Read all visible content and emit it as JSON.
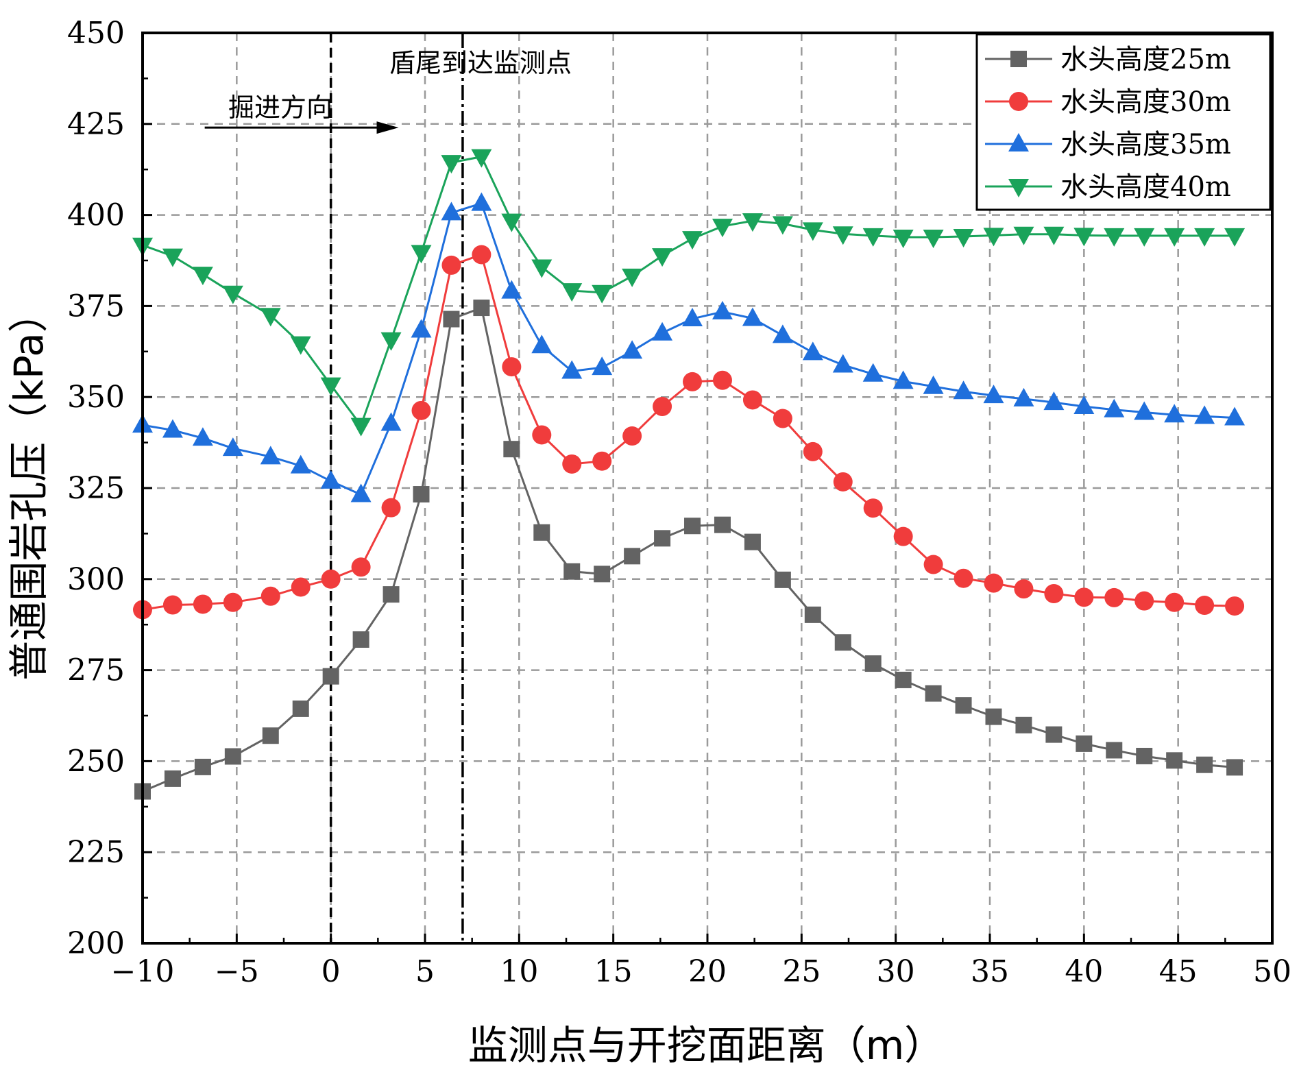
{
  "chart_data": {
    "type": "line",
    "title": "",
    "xlabel": "监测点与开挖面距离（m）",
    "ylabel": "普通围岩孔压（kPa）",
    "xlim": [
      -10,
      50
    ],
    "ylim": [
      200,
      450
    ],
    "xticks": [
      -10,
      -5,
      0,
      5,
      10,
      15,
      20,
      25,
      30,
      35,
      40,
      45,
      50
    ],
    "yticks": [
      200,
      225,
      250,
      275,
      300,
      325,
      350,
      375,
      400,
      425,
      450
    ],
    "xtick_labels": [
      "−10",
      "−5",
      "0",
      "5",
      "10",
      "15",
      "20",
      "25",
      "30",
      "35",
      "40",
      "45",
      "50"
    ],
    "ytick_labels": [
      "200",
      "225",
      "250",
      "275",
      "300",
      "325",
      "350",
      "375",
      "400",
      "425",
      "450"
    ],
    "grid": true,
    "legend_position": "top-right",
    "x": [
      -10,
      -8.4,
      -6.8,
      -5.2,
      -3.2,
      -1.6,
      0,
      1.6,
      3.2,
      4.8,
      6.4,
      8.0,
      9.6,
      11.2,
      12.8,
      14.4,
      16.0,
      17.6,
      19.2,
      20.8,
      22.4,
      24.0,
      25.6,
      27.2,
      28.8,
      30.4,
      32.0,
      33.6,
      35.2,
      36.8,
      38.4,
      40.0,
      41.6,
      43.2,
      44.8,
      46.4,
      48.0
    ],
    "series": [
      {
        "name": "水头高度25m",
        "color": "#636363",
        "marker": "square",
        "values": [
          241.7,
          245.2,
          248.4,
          251.3,
          257.0,
          264.4,
          273.3,
          283.4,
          295.8,
          323.3,
          371.4,
          374.5,
          335.7,
          312.8,
          302.1,
          301.4,
          306.3,
          311.2,
          314.6,
          314.9,
          310.2,
          299.8,
          290.2,
          282.6,
          276.8,
          272.3,
          268.6,
          265.3,
          262.2,
          259.9,
          257.3,
          254.8,
          253.0,
          251.4,
          250.2,
          249.0,
          248.3
        ]
      },
      {
        "name": "水头高度30m",
        "color": "#f03c3c",
        "marker": "circle",
        "values": [
          291.6,
          292.9,
          293.1,
          293.6,
          295.3,
          297.8,
          300.0,
          303.3,
          319.6,
          346.3,
          386.2,
          389.1,
          358.3,
          339.6,
          331.6,
          332.4,
          339.3,
          347.4,
          354.2,
          354.6,
          349.2,
          344.1,
          335.0,
          326.7,
          319.5,
          311.7,
          304.0,
          300.2,
          298.9,
          297.3,
          296.0,
          295.0,
          294.9,
          294.0,
          293.6,
          292.8,
          292.6
        ]
      },
      {
        "name": "水头高度35m",
        "color": "#1f6fdc",
        "marker": "triangle-up",
        "values": [
          342.3,
          340.9,
          338.7,
          335.9,
          333.6,
          331.1,
          326.9,
          323.2,
          342.8,
          368.4,
          400.6,
          403.2,
          379.1,
          364.1,
          357.1,
          358.1,
          362.6,
          367.6,
          371.5,
          373.4,
          371.6,
          366.9,
          362.2,
          358.8,
          356.3,
          354.3,
          352.9,
          351.5,
          350.4,
          349.5,
          348.5,
          347.4,
          346.5,
          345.8,
          345.1,
          344.7,
          344.3
        ]
      },
      {
        "name": "水头高度40m",
        "color": "#1aa35a",
        "marker": "triangle-down",
        "values": [
          391.7,
          388.7,
          383.7,
          378.5,
          372.4,
          364.6,
          353.3,
          342.2,
          365.7,
          389.7,
          414.4,
          416.0,
          398.3,
          385.7,
          379.2,
          378.7,
          383.2,
          388.8,
          393.5,
          396.9,
          398.4,
          397.6,
          395.9,
          394.8,
          394.3,
          393.9,
          393.9,
          394.1,
          394.4,
          394.7,
          394.7,
          394.4,
          394.3,
          394.3,
          394.3,
          394.3,
          394.3
        ]
      }
    ],
    "annotations": {
      "shield_tail_label": "盾尾到达监测点",
      "excavation_direction_label": "掘进方向"
    },
    "reference_lines": {
      "dashed_x": 0,
      "dashdot_x": 7
    }
  }
}
